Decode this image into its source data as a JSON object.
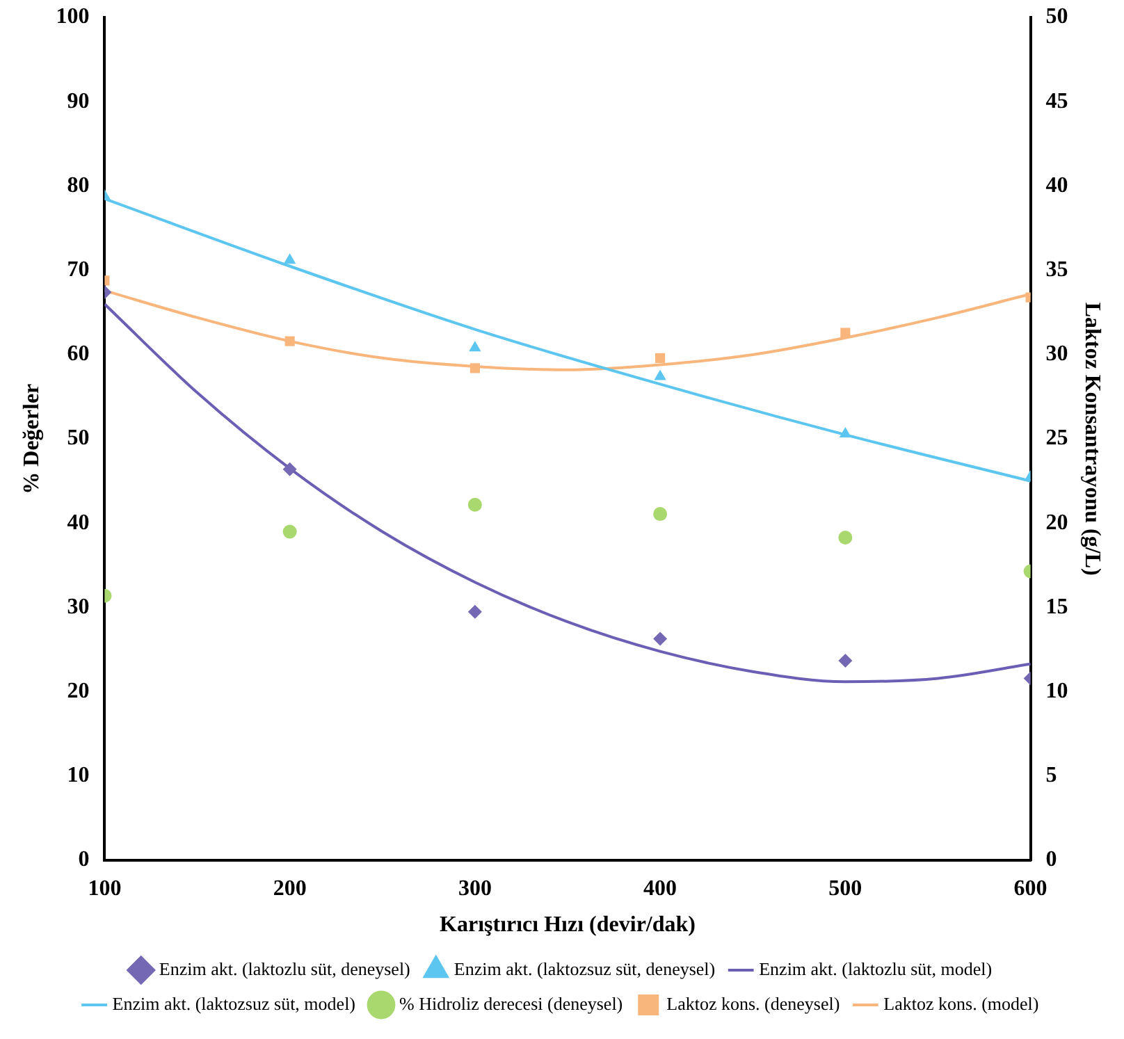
{
  "chart_data": {
    "type": "scatter",
    "xlabel": "Karıştırıcı Hızı (devir/dak)",
    "ylabel": "% Değerler",
    "y2label": "Laktoz Konsantrayonu (g/L)",
    "xlim": [
      100,
      600
    ],
    "xticks": [
      100,
      200,
      300,
      400,
      500,
      600
    ],
    "ylim": [
      0,
      100
    ],
    "yticks": [
      0,
      10,
      20,
      30,
      40,
      50,
      60,
      70,
      80,
      90,
      100
    ],
    "y2lim": [
      0,
      50
    ],
    "y2ticks": [
      0,
      5,
      10,
      15,
      20,
      25,
      30,
      35,
      40,
      45,
      50
    ],
    "grid": false,
    "legend": "bottom",
    "series": [
      {
        "name": "Enzim akt. (laktozlu süt, deneysel)",
        "marker": "diamond",
        "color": "#7467b3",
        "x": [
          100,
          200,
          300,
          400,
          500,
          600
        ],
        "values": [
          67.4,
          46.4,
          29.5,
          26.3,
          23.7,
          21.6
        ]
      },
      {
        "name": "Enzim akt. (laktozsuz süt, deneysel)",
        "marker": "triangle",
        "color": "#5cc6f0",
        "x": [
          100,
          200,
          300,
          400,
          500,
          600
        ],
        "values": [
          78.8,
          71.2,
          60.8,
          57.4,
          50.6,
          45.5
        ]
      },
      {
        "name": "Enzim akt. (laktozlu süt, model)",
        "type": "line",
        "marker": "none",
        "line_style": "solid",
        "color": "#6b5fb5",
        "x": [
          100,
          150,
          200,
          250,
          300,
          350,
          400,
          450,
          500,
          550,
          600
        ],
        "values": [
          66,
          55.5,
          46.5,
          39,
          33,
          28.3,
          24.8,
          22.4,
          21.2,
          21.6,
          23.3
        ]
      },
      {
        "name": "Enzim akt. (laktozsuz süt, model)",
        "type": "line",
        "marker": "none",
        "line_style": "solid",
        "color": "#5cc6f0",
        "x": [
          100,
          200,
          300,
          400,
          500,
          600
        ],
        "values": [
          78.5,
          70.5,
          63,
          56.5,
          50.5,
          45
        ]
      },
      {
        "name": "% Hidroliz derecesi (deneysel)",
        "marker": "circle",
        "color": "#a9d86e",
        "x": [
          100,
          200,
          300,
          400,
          500,
          600
        ],
        "values": [
          31.4,
          39,
          42.2,
          41.1,
          38.3,
          34.3
        ]
      },
      {
        "name": "Laktoz kons. (deneysel)",
        "marker": "square",
        "axis": "y2",
        "color": "#f8b57c",
        "x": [
          100,
          200,
          300,
          400,
          500,
          600
        ],
        "values": [
          34.4,
          30.8,
          29.2,
          29.8,
          31.3,
          33.4
        ]
      },
      {
        "name": "Laktoz kons. (model)",
        "type": "line",
        "marker": "none",
        "line_style": "solid",
        "axis": "y2",
        "color": "#f8b57c",
        "x": [
          100,
          150,
          200,
          250,
          300,
          350,
          400,
          450,
          500,
          550,
          600
        ],
        "values": [
          33.8,
          32.2,
          30.8,
          29.8,
          29.3,
          29.1,
          29.4,
          30,
          31,
          32.2,
          33.6
        ]
      }
    ]
  }
}
